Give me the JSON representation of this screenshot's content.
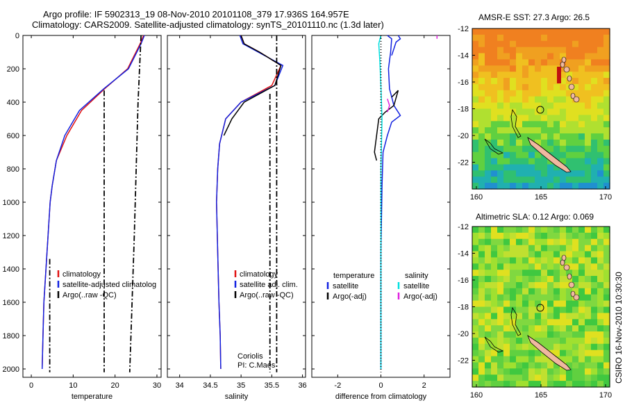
{
  "header": {
    "line1": "Argo profile: IF 5902313_19 08-Nov-2010 20101108_379 17.936S 164.957E",
    "line2": "Climatology: CARS2009. Satellite-adjusted climatology: synTS_20101110.nc (1.3d later)"
  },
  "side_label": "CSIRO 16-Nov-2010 10:30:30",
  "colors": {
    "climatology": "#e01010",
    "satellite": "#1020e0",
    "argo": "#000000",
    "cyan": "#00e0e0",
    "magenta": "#e020e0"
  },
  "chart_data": [
    {
      "type": "line",
      "xlabel": "temperature",
      "xticks": [
        0,
        10,
        20,
        30
      ],
      "xlim": [
        -2,
        31
      ],
      "ylim": [
        0,
        2050
      ],
      "yticks": [
        0,
        200,
        400,
        600,
        800,
        1000,
        1200,
        1400,
        1600,
        1800,
        2000
      ],
      "legend": [
        "climatology",
        "satellite-adjusted climatolog",
        "Argo(..raw -QC)"
      ],
      "series": [
        {
          "name": "climatology",
          "color": "climatology",
          "dash": "",
          "x": [
            26.8,
            26.0,
            23.0,
            17.5,
            12.0,
            8.5,
            6.0,
            5.0,
            4.5,
            4.0,
            3.5,
            3.0,
            2.8,
            2.6
          ],
          "y": [
            0,
            50,
            200,
            320,
            450,
            600,
            750,
            900,
            1000,
            1200,
            1400,
            1600,
            1800,
            2000
          ]
        },
        {
          "name": "satellite",
          "color": "satellite",
          "dash": "",
          "x": [
            27.0,
            26.2,
            23.2,
            17.3,
            11.5,
            8.0,
            6.0,
            5.0,
            4.5,
            4.0,
            3.5,
            3.0,
            2.8,
            2.6
          ],
          "y": [
            0,
            50,
            200,
            320,
            450,
            600,
            750,
            900,
            1000,
            1200,
            1400,
            1600,
            1800,
            2000
          ]
        },
        {
          "name": "argo-a",
          "color": "argo",
          "dash": "8,3,2,3",
          "x": [
            17.4,
            17.4
          ],
          "y": [
            330,
            2020
          ]
        },
        {
          "name": "argo-b",
          "color": "argo",
          "dash": "8,3,2,3",
          "x": [
            4.4,
            4.4
          ],
          "y": [
            1340,
            2020
          ]
        },
        {
          "name": "argo-c",
          "color": "argo",
          "dash": "8,3,2,3",
          "x": [
            26.2,
            25.5,
            24.6,
            23.5
          ],
          "y": [
            0,
            400,
            1200,
            2020
          ]
        }
      ]
    },
    {
      "type": "line",
      "xlabel": "salinity",
      "xticks": [
        34,
        34.5,
        35,
        35.5,
        36
      ],
      "xlim": [
        33.8,
        36.05
      ],
      "ylim": [
        0,
        2050
      ],
      "legend": [
        "climatology",
        "satellite adj. clim.",
        "Argo(..raw -QC)"
      ],
      "annotations": [
        "Coriolis",
        "PI: C.Maes"
      ],
      "series": [
        {
          "name": "climatology",
          "color": "climatology",
          "dash": "",
          "x": [
            35.0,
            35.05,
            35.3,
            35.65,
            35.5,
            35.0,
            34.75,
            34.65,
            34.62,
            34.6,
            34.62,
            34.64,
            34.66,
            34.67
          ],
          "y": [
            0,
            50,
            100,
            180,
            300,
            400,
            500,
            650,
            800,
            1000,
            1300,
            1600,
            1800,
            2000
          ]
        },
        {
          "name": "satellite",
          "color": "satellite",
          "dash": "",
          "x": [
            34.98,
            35.03,
            35.28,
            35.68,
            35.55,
            35.0,
            34.75,
            34.65,
            34.62,
            34.6,
            34.62,
            34.64,
            34.66,
            34.67
          ],
          "y": [
            0,
            50,
            100,
            180,
            300,
            400,
            500,
            650,
            800,
            1000,
            1300,
            1600,
            1800,
            2000
          ]
        },
        {
          "name": "argo-raw",
          "color": "argo",
          "dash": "",
          "x": [
            35.0,
            35.05,
            35.3,
            35.65,
            35.55,
            35.05,
            34.85,
            34.72
          ],
          "y": [
            0,
            50,
            100,
            180,
            300,
            400,
            500,
            600
          ]
        },
        {
          "name": "argo-a",
          "color": "argo",
          "dash": "8,3,2,3",
          "x": [
            35.58,
            35.58
          ],
          "y": [
            0,
            2020
          ]
        },
        {
          "name": "argo-b",
          "color": "argo",
          "dash": "8,3,2,3",
          "x": [
            35.47,
            35.47
          ],
          "y": [
            350,
            2020
          ]
        }
      ]
    },
    {
      "type": "line",
      "xlabel": "difference from climatology",
      "xticks": [
        -2,
        0,
        2
      ],
      "xlim": [
        -3.2,
        3.2
      ],
      "ylim": [
        0,
        2050
      ],
      "legend_left": [
        "temperature",
        "satellite",
        "Argo(-adj)"
      ],
      "legend_right": [
        "salinity",
        "satellite",
        "Argo(-adj)"
      ],
      "series": [
        {
          "name": "temp-satellite",
          "color": "satellite",
          "dash": "",
          "x": [
            0.3,
            0.5,
            0.45,
            0.35,
            0.4,
            0.6,
            0.9,
            0.5,
            0.3,
            0.1,
            0.05,
            0.0,
            0.0,
            0.0
          ],
          "y": [
            0,
            20,
            100,
            200,
            320,
            420,
            480,
            520,
            600,
            700,
            900,
            1300,
            1700,
            2000
          ]
        },
        {
          "name": "temp-satellite-top",
          "color": "satellite",
          "dash": "",
          "x": [
            0.8,
            0.9,
            0.7,
            0.6,
            0.5
          ],
          "y": [
            0,
            20,
            40,
            80,
            120
          ]
        },
        {
          "name": "temp-argo",
          "color": "argo",
          "dash": "",
          "x": [
            0.5,
            0.8,
            0.6,
            0.2,
            -0.1,
            -0.2,
            -0.3,
            -0.2
          ],
          "y": [
            370,
            330,
            420,
            460,
            500,
            600,
            700,
            750
          ]
        },
        {
          "name": "sal-satellite",
          "color": "cyan",
          "dash": "",
          "x": [
            0.0,
            -0.1,
            -0.05,
            0.0,
            0.05,
            0.0,
            0.0,
            0.0
          ],
          "y": [
            0,
            50,
            150,
            300,
            500,
            800,
            1400,
            2000
          ]
        },
        {
          "name": "sal-argo",
          "color": "magenta",
          "dash": "",
          "x": [
            0.3,
            0.4,
            0.3
          ],
          "y": [
            380,
            420,
            460
          ]
        },
        {
          "name": "sal-argo-top",
          "color": "magenta",
          "dash": "",
          "x": [
            2.6,
            2.6
          ],
          "y": [
            0,
            20
          ]
        },
        {
          "name": "zero",
          "color": "argo",
          "dash": "1,3",
          "x": [
            0,
            0
          ],
          "y": [
            0,
            2020
          ]
        }
      ]
    }
  ],
  "maps": [
    {
      "title": "AMSR-E SST: 27.3 Argo: 26.5",
      "yticks": [
        "-12",
        "-14",
        "-16",
        "-18",
        "-20",
        "-22"
      ],
      "xticks": [
        "160",
        "165",
        "170"
      ],
      "palette": "sst"
    },
    {
      "title": "Altimetric SLA: 0.12 Argo: 0.069",
      "yticks": [
        "-12",
        "-14",
        "-16",
        "-18",
        "-20",
        "-22"
      ],
      "xticks": [
        "160",
        "165",
        "170"
      ],
      "palette": "sla"
    }
  ]
}
